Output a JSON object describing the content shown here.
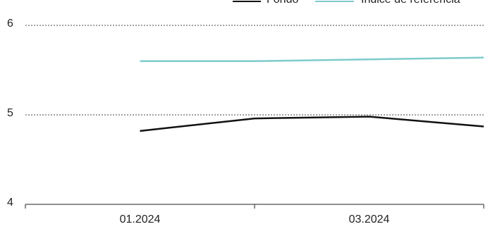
{
  "chart_data": {
    "type": "line",
    "categories": [
      null,
      "01.2024",
      null,
      "03.2024",
      null
    ],
    "series": [
      {
        "name": "Fondo",
        "color": "#111111",
        "values": [
          null,
          4.82,
          4.96,
          4.98,
          4.87
        ]
      },
      {
        "name": "Índice de referencia",
        "color": "#7ecbcc",
        "values": [
          null,
          5.6,
          5.6,
          5.62,
          5.64
        ]
      }
    ],
    "ylim": [
      4,
      6
    ],
    "yticks": [
      4,
      5,
      6
    ],
    "grid": true
  }
}
